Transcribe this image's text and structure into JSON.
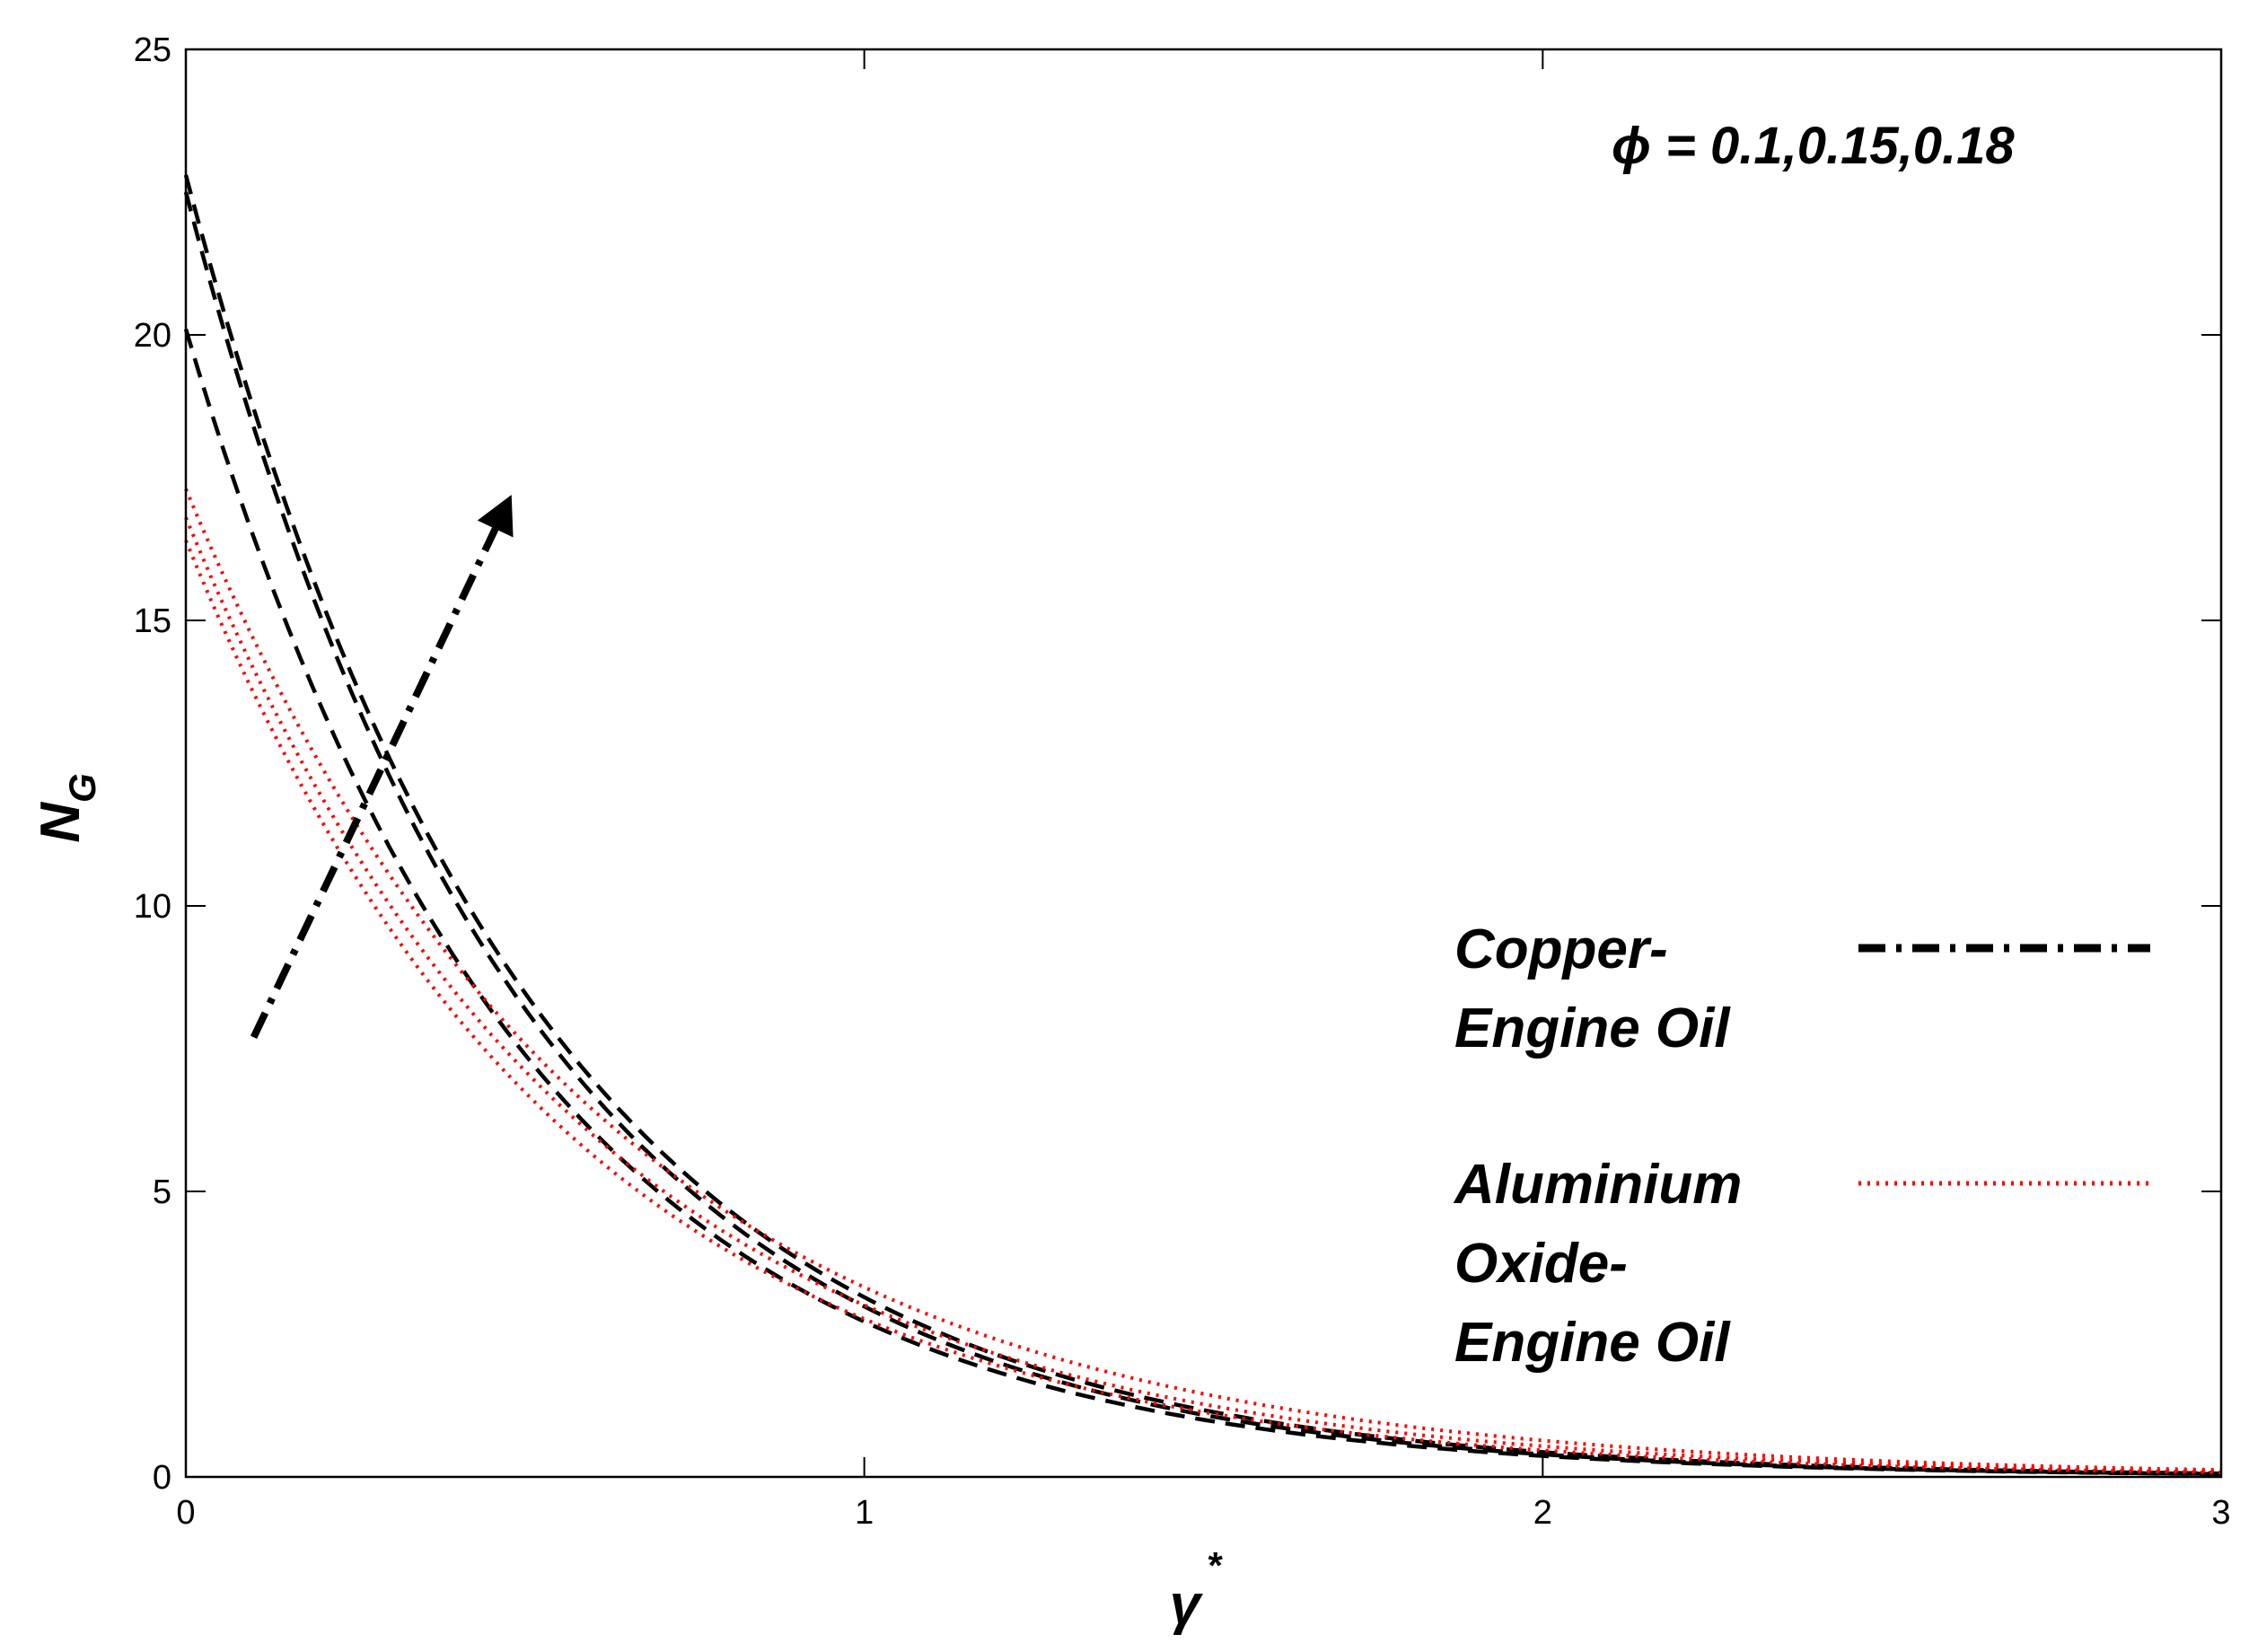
{
  "chart_data": {
    "type": "line",
    "xlabel": "γ",
    "xlabel_superscript": "*",
    "ylabel": "N",
    "ylabel_subscript": "G",
    "xlim": [
      0,
      3
    ],
    "ylim": [
      0,
      25
    ],
    "xticks": [
      0,
      1,
      2,
      3
    ],
    "yticks": [
      0,
      5,
      10,
      15,
      20,
      25
    ],
    "xtick_labels": [
      "0",
      "1",
      "2",
      "3"
    ],
    "ytick_labels": [
      "0",
      "5",
      "10",
      "15",
      "20",
      "25"
    ],
    "grid": false,
    "annotation": "ϕ = 0.1,0.15,0.18",
    "arrow": {
      "from": [
        0.1,
        7.7
      ],
      "to": [
        0.48,
        17.2
      ],
      "style": "dash-dot"
    },
    "legend": {
      "placement": "center-right",
      "entries": [
        {
          "label_lines": [
            "Copper-",
            "Engine Oil"
          ],
          "color": "#000000",
          "style": "dash-dot"
        },
        {
          "label_lines": [
            "Aluminium",
            "Oxide-",
            "Engine Oil"
          ],
          "color": "#ff0000",
          "style": "dotted"
        }
      ]
    },
    "series": [
      {
        "group": "Copper-Engine Oil",
        "phi": 0.1,
        "color": "#000000",
        "style": "dashed",
        "y0": 20.1,
        "decay": 2.0
      },
      {
        "group": "Copper-Engine Oil",
        "phi": 0.15,
        "color": "#000000",
        "style": "dashed",
        "y0": 22.5,
        "decay": 2.02
      },
      {
        "group": "Copper-Engine Oil",
        "phi": 0.18,
        "color": "#000000",
        "style": "dashed",
        "y0": 22.8,
        "decay": 1.98
      },
      {
        "group": "Aluminium Oxide-Engine Oil",
        "phi": 0.1,
        "color": "#ff0000",
        "style": "dotted",
        "y0": 16.4,
        "decay": 1.78
      },
      {
        "group": "Aluminium Oxide-Engine Oil",
        "phi": 0.15,
        "color": "#ff0000",
        "style": "dotted",
        "y0": 16.8,
        "decay": 1.72
      },
      {
        "group": "Aluminium Oxide-Engine Oil",
        "phi": 0.18,
        "color": "#ff0000",
        "style": "dotted",
        "y0": 17.3,
        "decay": 1.65
      }
    ]
  }
}
